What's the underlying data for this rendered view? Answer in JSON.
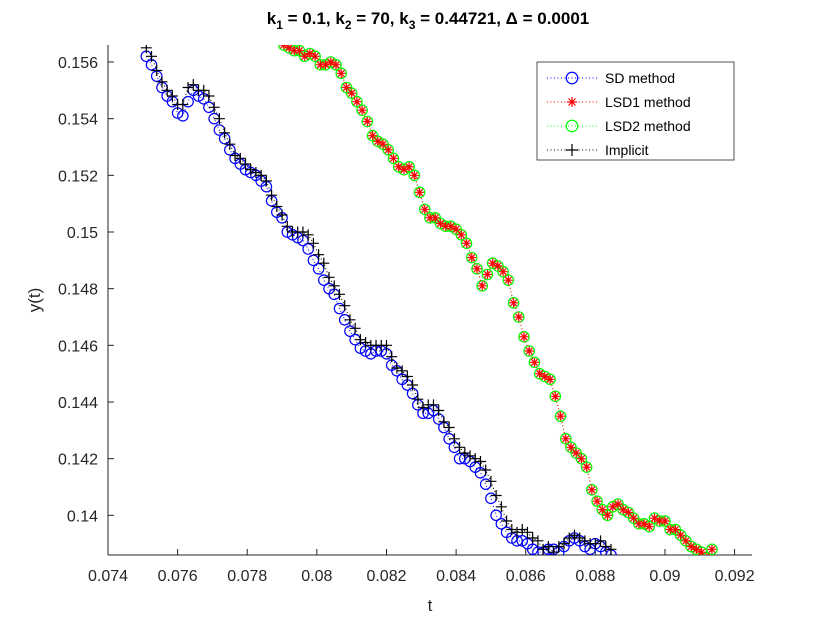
{
  "chart_data": {
    "type": "line",
    "title": "k₁ = 0.1, k₂ = 70, k₃ = 0.44721, Δ = 0.0001",
    "title_parts": {
      "k1": "k",
      "sub1": "1",
      "eq1": " = 0.1, ",
      "k2": "k",
      "sub2": "2",
      "eq2": " = 70, ",
      "k3": "k",
      "sub3": "3",
      "eq3": " = 0.44721, Δ = 0.0001"
    },
    "xlabel": "t",
    "ylabel": "y(t)",
    "xlim": [
      0.074,
      0.0925
    ],
    "ylim": [
      0.1386,
      0.1566
    ],
    "xticks": [
      0.074,
      0.076,
      0.078,
      0.08,
      0.082,
      0.084,
      0.086,
      0.088,
      0.09,
      0.092
    ],
    "xtick_labels": [
      "0.074",
      "0.076",
      "0.078",
      "0.08",
      "0.082",
      "0.084",
      "0.086",
      "0.088",
      "0.09",
      "0.092"
    ],
    "yticks": [
      0.14,
      0.142,
      0.144,
      0.146,
      0.148,
      0.15,
      0.152,
      0.154,
      0.156
    ],
    "ytick_labels": [
      "0.14",
      "0.142",
      "0.144",
      "0.146",
      "0.148",
      "0.15",
      "0.152",
      "0.154",
      "0.156"
    ],
    "grid": false,
    "legend_position": "top-right",
    "series": [
      {
        "name": "SD method",
        "color": "#0000ff",
        "marker": "circle",
        "linestyle": "dotted",
        "x": [
          0.0751,
          0.07525,
          0.0754,
          0.07555,
          0.0757,
          0.07585,
          0.076,
          0.07615,
          0.0763,
          0.07645,
          0.0766,
          0.07675,
          0.0769,
          0.07705,
          0.0772,
          0.07735,
          0.0775,
          0.07765,
          0.0778,
          0.07795,
          0.0781,
          0.07825,
          0.0784,
          0.07855,
          0.0787,
          0.07885,
          0.079,
          0.07915,
          0.0793,
          0.07945,
          0.0796,
          0.07975,
          0.0799,
          0.08005,
          0.0802,
          0.08035,
          0.0805,
          0.08065,
          0.0808,
          0.08095,
          0.0811,
          0.08125,
          0.0814,
          0.08155,
          0.0817,
          0.08185,
          0.082,
          0.08215,
          0.0823,
          0.08245,
          0.0826,
          0.08275,
          0.0829,
          0.08305,
          0.0832,
          0.08335,
          0.0835,
          0.08365,
          0.0838,
          0.08395,
          0.0841,
          0.08425,
          0.0844,
          0.08455,
          0.0847,
          0.08485,
          0.085,
          0.08515,
          0.0853,
          0.08545,
          0.0856,
          0.08575,
          0.0859,
          0.08605,
          0.0862,
          0.08635,
          0.0865,
          0.08665,
          0.0868,
          0.08695,
          0.0871,
          0.08725,
          0.0874,
          0.08755,
          0.0877,
          0.08785,
          0.088,
          0.08815,
          0.0883,
          0.08845
        ],
        "y": [
          0.1562,
          0.1559,
          0.1555,
          0.1551,
          0.1548,
          0.1546,
          0.1542,
          0.1541,
          0.1546,
          0.155,
          0.1548,
          0.1547,
          0.1544,
          0.154,
          0.1536,
          0.1533,
          0.1529,
          0.1526,
          0.1524,
          0.1522,
          0.1521,
          0.152,
          0.1518,
          0.1516,
          0.1511,
          0.1507,
          0.1505,
          0.15,
          0.1499,
          0.1498,
          0.1497,
          0.1494,
          0.149,
          0.1487,
          0.1483,
          0.148,
          0.1478,
          0.1473,
          0.1469,
          0.1465,
          0.1462,
          0.1459,
          0.1458,
          0.1457,
          0.1458,
          0.1458,
          0.1457,
          0.1453,
          0.1451,
          0.1448,
          0.1446,
          0.1443,
          0.1439,
          0.1436,
          0.1436,
          0.1437,
          0.1434,
          0.1431,
          0.1427,
          0.1424,
          0.142,
          0.142,
          0.1419,
          0.1417,
          0.1415,
          0.1411,
          0.1406,
          0.14,
          0.1397,
          0.1394,
          0.1392,
          0.1391,
          0.1391,
          0.139,
          0.1388,
          0.1387,
          0.1387,
          0.1388,
          0.1388,
          0.1387,
          0.1389,
          0.1391,
          0.1392,
          0.1391,
          0.1389,
          0.1388,
          0.139,
          0.1389,
          0.1387,
          0.1386
        ]
      },
      {
        "name": "LSD1 method",
        "color": "#ff0000",
        "marker": "asterisk",
        "linestyle": "dotted",
        "x": [
          0.07905,
          0.0792,
          0.07935,
          0.0795,
          0.07965,
          0.0798,
          0.07995,
          0.0801,
          0.08025,
          0.0804,
          0.08055,
          0.0807,
          0.08085,
          0.081,
          0.08115,
          0.0813,
          0.08145,
          0.0816,
          0.08175,
          0.0819,
          0.08205,
          0.0822,
          0.08235,
          0.0825,
          0.08265,
          0.0828,
          0.08295,
          0.0831,
          0.08325,
          0.0834,
          0.08355,
          0.0837,
          0.08385,
          0.084,
          0.08415,
          0.0843,
          0.08445,
          0.0846,
          0.08475,
          0.0849,
          0.08505,
          0.0852,
          0.08535,
          0.0855,
          0.08565,
          0.0858,
          0.08595,
          0.0861,
          0.08625,
          0.0864,
          0.08655,
          0.0867,
          0.08685,
          0.087,
          0.08715,
          0.0873,
          0.08745,
          0.0876,
          0.08775,
          0.0879,
          0.08805,
          0.0882,
          0.08835,
          0.0885,
          0.08865,
          0.0888,
          0.08895,
          0.0891,
          0.08925,
          0.0894,
          0.08955,
          0.0897,
          0.08985,
          0.09,
          0.09015,
          0.0903,
          0.09045,
          0.0906,
          0.09075,
          0.0909,
          0.09105,
          0.0912,
          0.09135
        ],
        "y": [
          0.1566,
          0.1565,
          0.1564,
          0.1564,
          0.1562,
          0.1563,
          0.1562,
          0.1559,
          0.1559,
          0.156,
          0.1559,
          0.1556,
          0.1551,
          0.1549,
          0.1546,
          0.1543,
          0.1539,
          0.1534,
          0.1532,
          0.1531,
          0.1529,
          0.1526,
          0.1523,
          0.1522,
          0.1523,
          0.152,
          0.1514,
          0.1508,
          0.1505,
          0.1505,
          0.1503,
          0.1502,
          0.1502,
          0.1501,
          0.1499,
          0.1496,
          0.1491,
          0.1487,
          0.1481,
          0.1485,
          0.1489,
          0.1488,
          0.1486,
          0.1483,
          0.1475,
          0.147,
          0.1463,
          0.1458,
          0.1454,
          0.145,
          0.1449,
          0.1448,
          0.1442,
          0.1435,
          0.1427,
          0.1424,
          0.1422,
          0.142,
          0.1417,
          0.1409,
          0.1405,
          0.1402,
          0.14,
          0.1403,
          0.1404,
          0.1402,
          0.1401,
          0.1399,
          0.1397,
          0.1397,
          0.1396,
          0.1399,
          0.1398,
          0.1398,
          0.1395,
          0.1395,
          0.1393,
          0.1391,
          0.1389,
          0.1388,
          0.1387,
          0.1385,
          0.1388
        ]
      },
      {
        "name": "LSD2 method",
        "color": "#00ff00",
        "marker": "circle",
        "linestyle": "dotted",
        "x": [
          0.07905,
          0.0792,
          0.07935,
          0.0795,
          0.07965,
          0.0798,
          0.07995,
          0.0801,
          0.08025,
          0.0804,
          0.08055,
          0.0807,
          0.08085,
          0.081,
          0.08115,
          0.0813,
          0.08145,
          0.0816,
          0.08175,
          0.0819,
          0.08205,
          0.0822,
          0.08235,
          0.0825,
          0.08265,
          0.0828,
          0.08295,
          0.0831,
          0.08325,
          0.0834,
          0.08355,
          0.0837,
          0.08385,
          0.084,
          0.08415,
          0.0843,
          0.08445,
          0.0846,
          0.08475,
          0.0849,
          0.08505,
          0.0852,
          0.08535,
          0.0855,
          0.08565,
          0.0858,
          0.08595,
          0.0861,
          0.08625,
          0.0864,
          0.08655,
          0.0867,
          0.08685,
          0.087,
          0.08715,
          0.0873,
          0.08745,
          0.0876,
          0.08775,
          0.0879,
          0.08805,
          0.0882,
          0.08835,
          0.0885,
          0.08865,
          0.0888,
          0.08895,
          0.0891,
          0.08925,
          0.0894,
          0.08955,
          0.0897,
          0.08985,
          0.09,
          0.09015,
          0.0903,
          0.09045,
          0.0906,
          0.09075,
          0.0909,
          0.09105,
          0.0912,
          0.09135
        ],
        "y": [
          0.1566,
          0.1565,
          0.1564,
          0.1564,
          0.1562,
          0.1563,
          0.1562,
          0.1559,
          0.1559,
          0.156,
          0.1559,
          0.1556,
          0.1551,
          0.1549,
          0.1546,
          0.1543,
          0.1539,
          0.1534,
          0.1532,
          0.1531,
          0.1529,
          0.1526,
          0.1523,
          0.1522,
          0.1523,
          0.152,
          0.1514,
          0.1508,
          0.1505,
          0.1505,
          0.1503,
          0.1502,
          0.1502,
          0.1501,
          0.1499,
          0.1496,
          0.1491,
          0.1487,
          0.1481,
          0.1485,
          0.1489,
          0.1488,
          0.1486,
          0.1483,
          0.1475,
          0.147,
          0.1463,
          0.1458,
          0.1454,
          0.145,
          0.1449,
          0.1448,
          0.1442,
          0.1435,
          0.1427,
          0.1424,
          0.1422,
          0.142,
          0.1417,
          0.1409,
          0.1405,
          0.1402,
          0.14,
          0.1403,
          0.1404,
          0.1402,
          0.1401,
          0.1399,
          0.1397,
          0.1397,
          0.1396,
          0.1399,
          0.1398,
          0.1398,
          0.1395,
          0.1395,
          0.1393,
          0.1391,
          0.1389,
          0.1388,
          0.1387,
          0.1385,
          0.1388
        ]
      },
      {
        "name": "Implicit",
        "color": "#000000",
        "marker": "plus",
        "linestyle": "dotted",
        "x": [
          0.0751,
          0.07525,
          0.0754,
          0.07555,
          0.0757,
          0.07585,
          0.076,
          0.07615,
          0.0763,
          0.07645,
          0.0766,
          0.07675,
          0.0769,
          0.07705,
          0.0772,
          0.07735,
          0.0775,
          0.07765,
          0.0778,
          0.07795,
          0.0781,
          0.07825,
          0.0784,
          0.07855,
          0.0787,
          0.07885,
          0.079,
          0.07915,
          0.0793,
          0.07945,
          0.0796,
          0.07975,
          0.0799,
          0.08005,
          0.0802,
          0.08035,
          0.0805,
          0.08065,
          0.0808,
          0.08095,
          0.0811,
          0.08125,
          0.0814,
          0.08155,
          0.0817,
          0.08185,
          0.082,
          0.08215,
          0.0823,
          0.08245,
          0.0826,
          0.08275,
          0.0829,
          0.08305,
          0.0832,
          0.08335,
          0.0835,
          0.08365,
          0.0838,
          0.08395,
          0.0841,
          0.08425,
          0.0844,
          0.08455,
          0.0847,
          0.08485,
          0.085,
          0.08515,
          0.0853,
          0.08545,
          0.0856,
          0.08575,
          0.0859,
          0.08605,
          0.0862,
          0.08635,
          0.0865,
          0.08665,
          0.0868,
          0.08695,
          0.0871,
          0.08725,
          0.0874,
          0.08755,
          0.0877,
          0.08785,
          0.088,
          0.08815,
          0.0883,
          0.08845
        ],
        "y": [
          0.1565,
          0.1562,
          0.1557,
          0.1553,
          0.155,
          0.1548,
          0.1545,
          0.1545,
          0.1551,
          0.1552,
          0.155,
          0.155,
          0.1548,
          0.1544,
          0.154,
          0.1535,
          0.1531,
          0.1527,
          0.1526,
          0.1524,
          0.1522,
          0.1521,
          0.152,
          0.1518,
          0.1513,
          0.1509,
          0.1506,
          0.1502,
          0.15,
          0.15,
          0.15,
          0.1499,
          0.1496,
          0.1492,
          0.1489,
          0.1484,
          0.1481,
          0.1478,
          0.1474,
          0.1469,
          0.1466,
          0.1462,
          0.1461,
          0.146,
          0.146,
          0.146,
          0.146,
          0.1456,
          0.1452,
          0.1451,
          0.1449,
          0.1446,
          0.1441,
          0.1438,
          0.1439,
          0.1439,
          0.1437,
          0.1433,
          0.1431,
          0.1427,
          0.1424,
          0.1422,
          0.1421,
          0.142,
          0.1419,
          0.1416,
          0.1412,
          0.1407,
          0.1403,
          0.1398,
          0.1395,
          0.1394,
          0.1395,
          0.1394,
          0.1392,
          0.1391,
          0.1388,
          0.1389,
          0.1387,
          0.1389,
          0.139,
          0.1392,
          0.1393,
          0.1392,
          0.1391,
          0.139,
          0.139,
          0.1391,
          0.1389,
          0.1388
        ]
      }
    ]
  }
}
